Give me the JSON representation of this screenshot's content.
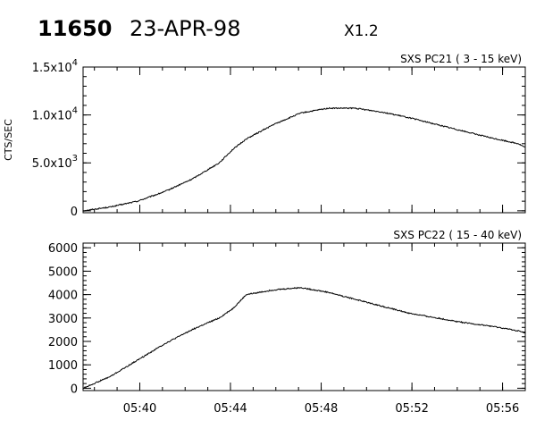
{
  "header": {
    "event_id": "11650",
    "date": "23-APR-98",
    "flare_class": "X1.2"
  },
  "chart_data": [
    {
      "type": "line",
      "panel_label": "SXS PC21  (  3 - 15 keV)",
      "ylabel": "CTS/SEC",
      "xlabel": "",
      "ylim": [
        -200,
        15000
      ],
      "xlim": [
        5.625,
        5.95
      ],
      "y_tick_values": [
        0,
        5000,
        10000,
        15000
      ],
      "y_tick_labels": [
        {
          "mant": "0",
          "exp": ""
        },
        {
          "mant": "5.0x10",
          "exp": "3"
        },
        {
          "mant": "1.0x10",
          "exp": "4"
        },
        {
          "mant": "1.5x10",
          "exp": "4"
        }
      ],
      "x_tick_values": [
        5.6667,
        5.7333,
        5.8,
        5.8667,
        5.9333
      ],
      "x_tick_labels": [
        "",
        "",
        "",
        "",
        ""
      ],
      "grid": false,
      "series": [
        {
          "name": "SXS PC21",
          "x": [
            5.625,
            5.645,
            5.665,
            5.685,
            5.705,
            5.725,
            5.735,
            5.745,
            5.765,
            5.785,
            5.805,
            5.825,
            5.845,
            5.865,
            5.885,
            5.905,
            5.925,
            5.945,
            5.95
          ],
          "values": [
            0,
            400,
            1000,
            2000,
            3300,
            5000,
            6400,
            7500,
            9000,
            10200,
            10700,
            10700,
            10300,
            9700,
            9000,
            8300,
            7600,
            7000,
            6600
          ]
        }
      ]
    },
    {
      "type": "line",
      "panel_label": "SXS PC22  ( 15 - 40 keV)",
      "ylabel": "",
      "xlabel": "",
      "ylim": [
        -100,
        6200
      ],
      "xlim": [
        5.625,
        5.95
      ],
      "y_tick_values": [
        0,
        1000,
        2000,
        3000,
        4000,
        5000,
        6000
      ],
      "y_tick_labels": [
        {
          "mant": "0",
          "exp": ""
        },
        {
          "mant": "1000",
          "exp": ""
        },
        {
          "mant": "2000",
          "exp": ""
        },
        {
          "mant": "3000",
          "exp": ""
        },
        {
          "mant": "4000",
          "exp": ""
        },
        {
          "mant": "5000",
          "exp": ""
        },
        {
          "mant": "6000",
          "exp": ""
        }
      ],
      "x_tick_values": [
        5.6667,
        5.7333,
        5.8,
        5.8667,
        5.9333
      ],
      "x_tick_labels": [
        "05:40",
        "05:44",
        "05:48",
        "05:52",
        "05:56"
      ],
      "grid": false,
      "series": [
        {
          "name": "SXS PC22",
          "x": [
            5.625,
            5.645,
            5.665,
            5.685,
            5.705,
            5.725,
            5.735,
            5.745,
            5.765,
            5.785,
            5.805,
            5.825,
            5.845,
            5.865,
            5.885,
            5.905,
            5.925,
            5.945,
            5.95
          ],
          "values": [
            0,
            500,
            1200,
            1900,
            2500,
            3000,
            3400,
            4000,
            4200,
            4300,
            4100,
            3800,
            3500,
            3200,
            3000,
            2800,
            2650,
            2450,
            2350
          ]
        }
      ]
    }
  ]
}
